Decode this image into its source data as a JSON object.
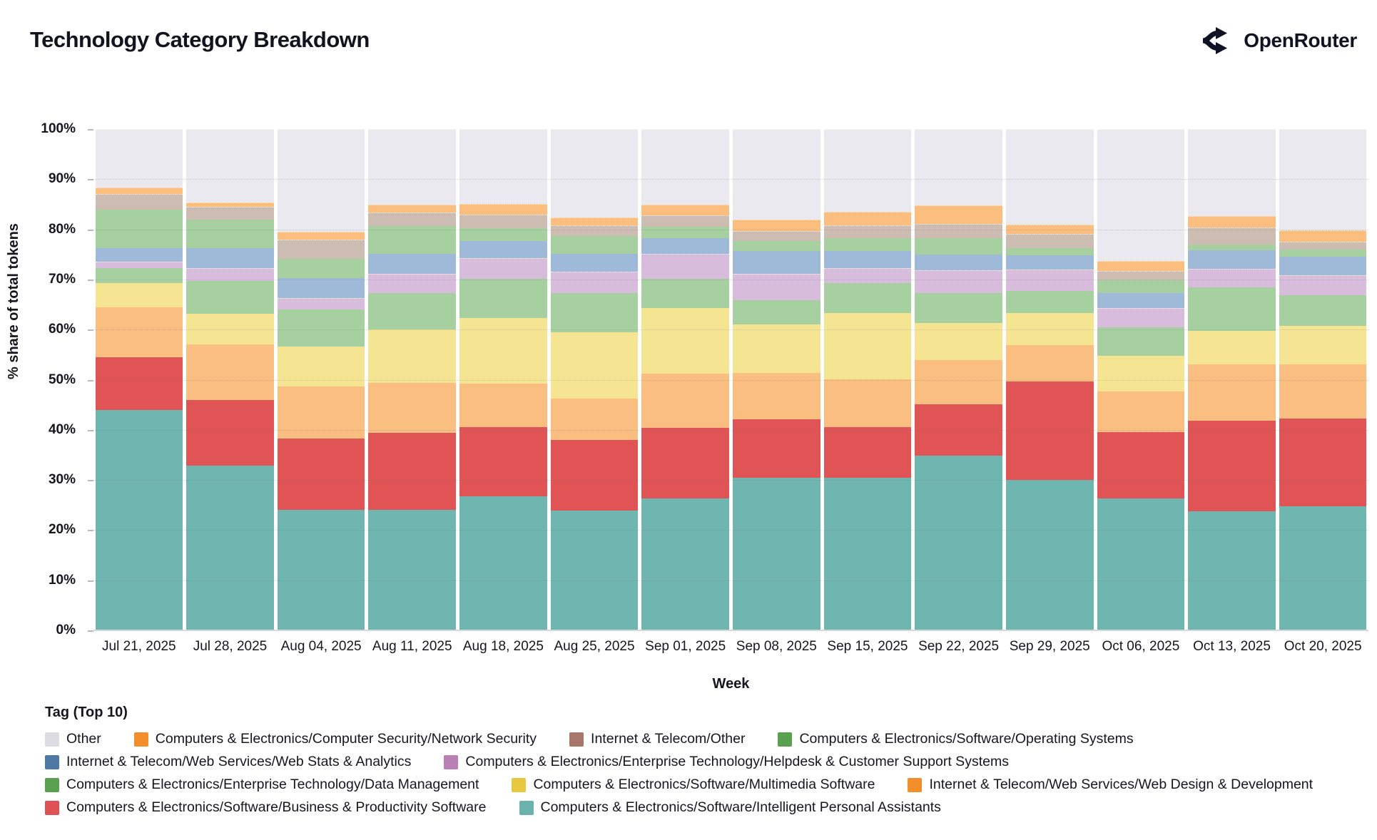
{
  "header": {
    "title": "Technology Category Breakdown",
    "brand": "OpenRouter"
  },
  "chart_data": {
    "type": "bar",
    "stacked": true,
    "normalized_percent": true,
    "title": "Technology Category Breakdown",
    "xlabel": "Week",
    "ylabel": "% share of total tokens",
    "ylim": [
      0,
      100
    ],
    "ytick_step": 10,
    "ytick_labels": [
      "0%",
      "10%",
      "20%",
      "30%",
      "40%",
      "50%",
      "60%",
      "70%",
      "80%",
      "90%",
      "100%"
    ],
    "grid": true,
    "legend_title": "Tag (Top 10)",
    "legend_position": "bottom",
    "categories": [
      "Jul 21, 2025",
      "Jul 28, 2025",
      "Aug 04, 2025",
      "Aug 11, 2025",
      "Aug 18, 2025",
      "Aug 25, 2025",
      "Sep 01, 2025",
      "Sep 08, 2025",
      "Sep 15, 2025",
      "Sep 22, 2025",
      "Sep 29, 2025",
      "Oct 06, 2025",
      "Oct 13, 2025",
      "Oct 20, 2025"
    ],
    "series": [
      {
        "name": "Computers & Electronics/Software/Intelligent Personal Assistants",
        "bar_color": "#6FB5B0",
        "legend_color": "#6BB2AD",
        "pattern": "none",
        "values": [
          44.0,
          32.8,
          24.0,
          24.1,
          26.7,
          23.9,
          26.3,
          30.5,
          30.4,
          34.9,
          30.0,
          26.3,
          23.8,
          24.8
        ]
      },
      {
        "name": "Computers & Electronics/Software/Business & Productivity Software",
        "bar_color": "#E05456",
        "legend_color": "#DF5152",
        "pattern": "none",
        "values": [
          10.5,
          13.2,
          14.2,
          15.3,
          13.8,
          14.1,
          14.1,
          11.6,
          10.2,
          10.2,
          19.6,
          13.2,
          18.0,
          17.5
        ]
      },
      {
        "name": "Internet & Telecom/Web Services/Web Design & Development",
        "bar_color": "#F9BE80",
        "legend_color": "#F28E2B",
        "pattern": "none",
        "values": [
          10.0,
          11.1,
          10.4,
          10.0,
          8.7,
          8.3,
          10.8,
          9.2,
          9.5,
          8.8,
          7.3,
          8.1,
          11.2,
          10.7
        ]
      },
      {
        "name": "Computers & Electronics/Software/Multimedia Software",
        "bar_color": "#F5E492",
        "legend_color": "#E7C83F",
        "pattern": "none",
        "values": [
          4.8,
          6.0,
          8.0,
          10.7,
          13.1,
          13.2,
          13.1,
          9.7,
          13.2,
          7.4,
          6.4,
          7.2,
          6.7,
          7.7
        ]
      },
      {
        "name": "Computers & Electronics/Enterprise Technology/Data Management",
        "bar_color": "#A7D0A0",
        "legend_color": "#59A14F",
        "pattern": "none",
        "values": [
          2.9,
          6.6,
          7.4,
          7.2,
          7.8,
          7.8,
          5.9,
          4.9,
          6.0,
          6.0,
          4.4,
          5.7,
          8.7,
          6.1
        ]
      },
      {
        "name": "Computers & Electronics/Enterprise Technology/Helpdesk & Customer Support Systems",
        "bar_color": "#D8BCDC",
        "legend_color": "#BA7FB4",
        "pattern": "dots",
        "values": [
          1.3,
          2.5,
          2.3,
          3.9,
          4.1,
          4.2,
          4.9,
          5.2,
          3.0,
          4.5,
          4.3,
          3.8,
          3.7,
          4.1
        ]
      },
      {
        "name": "Internet & Telecom/Web Services/Web Stats & Analytics",
        "bar_color": "#9FB9D8",
        "legend_color": "#4E79A7",
        "pattern": "none",
        "values": [
          2.8,
          4.1,
          4.0,
          3.9,
          3.5,
          3.6,
          3.2,
          4.6,
          3.4,
          3.2,
          2.9,
          3.0,
          3.7,
          3.6
        ]
      },
      {
        "name": "Computers & Electronics/Software/Operating Systems",
        "bar_color": "#A7D0A0",
        "legend_color": "#59A14F",
        "pattern": "none",
        "values": [
          7.7,
          5.7,
          3.8,
          5.5,
          2.5,
          3.6,
          2.2,
          2.0,
          2.5,
          3.3,
          1.4,
          2.6,
          1.2,
          1.5
        ]
      },
      {
        "name": "Internet & Telecom/Other",
        "bar_color": "#CDBCB1",
        "legend_color": "#A8766B",
        "pattern": "legend-dots",
        "values": [
          3.0,
          2.5,
          3.8,
          2.8,
          2.8,
          2.1,
          2.3,
          2.0,
          2.6,
          2.8,
          2.8,
          1.8,
          3.4,
          1.6
        ]
      },
      {
        "name": "Computers & Electronics/Computer Security/Network Security",
        "bar_color": "#FBBE7E",
        "legend_color": "#F28E2B",
        "pattern": "none",
        "values": [
          1.3,
          0.8,
          1.7,
          1.6,
          2.1,
          1.6,
          2.2,
          2.3,
          2.7,
          3.7,
          1.9,
          2.0,
          2.3,
          2.2
        ]
      },
      {
        "name": "Other",
        "bar_color": "#E9E9EF",
        "legend_color": "#DCDCE2",
        "pattern": "none",
        "values": [
          11.7,
          14.7,
          20.4,
          15.0,
          14.9,
          17.6,
          15.0,
          18.0,
          16.5,
          15.2,
          19.0,
          26.3,
          17.3,
          20.2
        ]
      }
    ],
    "legend_rows": [
      [
        10,
        9,
        8,
        7
      ],
      [
        6,
        5
      ],
      [
        4,
        3,
        2
      ],
      [
        1,
        0
      ]
    ]
  },
  "colors": {
    "text": "#16161f",
    "brand_text": "#0f1222",
    "gridline": "#6e6e87",
    "background": "#ffffff"
  }
}
